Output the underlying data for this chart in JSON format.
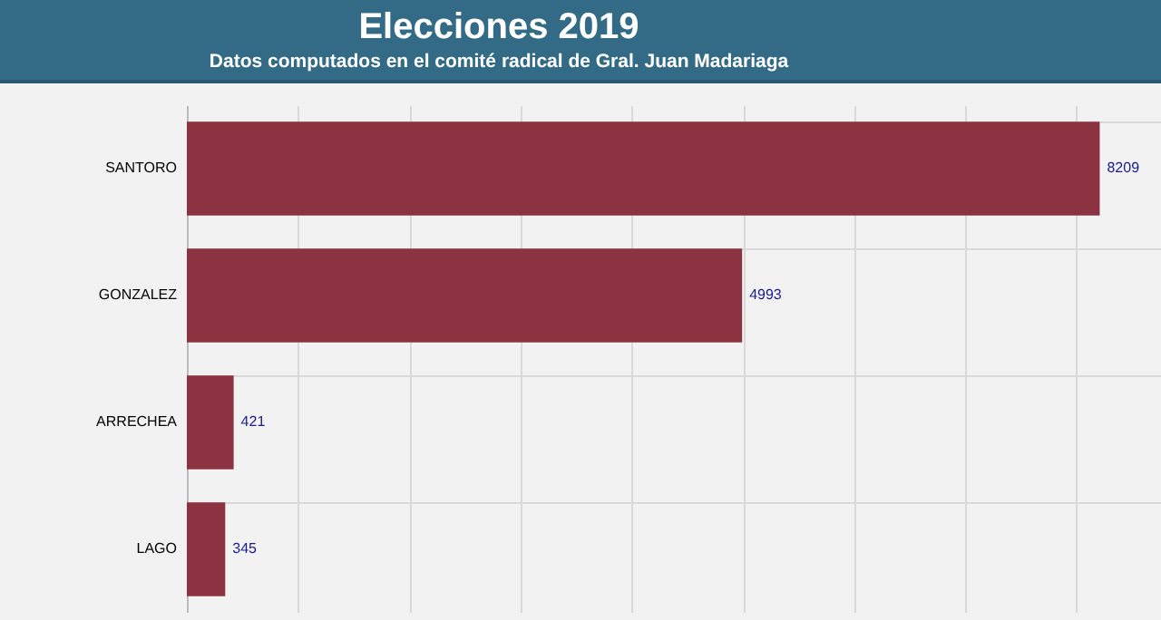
{
  "chart_data": {
    "type": "bar",
    "orientation": "horizontal",
    "title": "Elecciones 2019",
    "subtitle": "Datos computados en el comité radical de Gral. Juan Madariaga",
    "categories": [
      "SANTORO",
      "GONZALEZ",
      "ARRECHEA",
      "LAGO"
    ],
    "values": [
      8209,
      4993,
      421,
      345
    ],
    "color": "#8b3341",
    "xlim": [
      0,
      8760
    ],
    "xticks": [
      {
        "value": 0,
        "label": null
      },
      {
        "value": 1000,
        "label": null
      },
      {
        "value": 2000,
        "label": null
      },
      {
        "value": 3000,
        "label": null
      },
      {
        "value": 4000,
        "label": null
      },
      {
        "value": 5000,
        "label": null
      },
      {
        "value": 6000,
        "label": null
      },
      {
        "value": 7000,
        "label": null
      },
      {
        "value": 8000,
        "label": null
      }
    ],
    "tick_labels": "y",
    "grid": true,
    "data_labels": true
  }
}
